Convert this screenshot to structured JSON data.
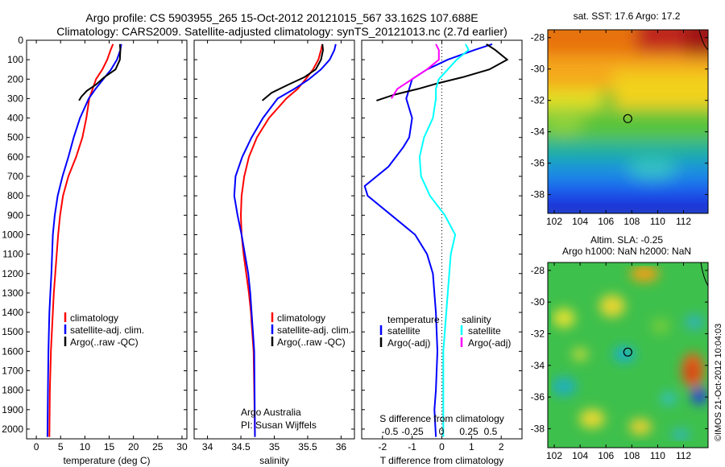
{
  "title": {
    "line1": "Argo profile: CS 5903955_265 15-Oct-2012 20121015_567 33.162S 107.688E",
    "line2": "Climatology: CARS2009. Satellite-adjusted climatology: synTS_20121013.nc (2.7d earlier)"
  },
  "colors": {
    "climatology": "#ff0000",
    "satellite": "#0000ff",
    "argo": "#000000",
    "sat_salinity": "#00ffff",
    "argo_salinity": "#ff00ff"
  },
  "chart_data": [
    {
      "type": "line",
      "xlabel": "temperature (deg C)",
      "ylabel": "",
      "xlim": [
        -2,
        31
      ],
      "ylim": [
        2050,
        0
      ],
      "xticks": [
        0,
        5,
        10,
        15,
        20,
        25,
        30
      ],
      "yticks": [
        0,
        100,
        200,
        300,
        400,
        500,
        600,
        700,
        800,
        900,
        1000,
        1100,
        1200,
        1300,
        1400,
        1500,
        1600,
        1700,
        1800,
        1900,
        2000
      ],
      "legend": [
        "climatology",
        "satellite-adj. clim.",
        "Argo(..raw -QC)"
      ],
      "legend_position": "lower-middle",
      "series": [
        {
          "name": "climatology",
          "color": "#ff0000",
          "x": [
            15.8,
            15.3,
            14.6,
            13.6,
            12.3,
            11.6,
            10.9,
            10.3,
            9.5,
            8.2,
            6.6,
            5.5,
            4.9,
            4.5,
            4.2,
            3.9,
            3.6,
            3.4,
            3.2,
            3.0,
            2.8,
            2.7
          ],
          "y": [
            20,
            50,
            100,
            150,
            200,
            250,
            300,
            400,
            500,
            600,
            700,
            800,
            900,
            1000,
            1100,
            1200,
            1300,
            1400,
            1500,
            1600,
            1800,
            2040
          ]
        },
        {
          "name": "satellite-adj. clim.",
          "color": "#0000ff",
          "x": [
            17.5,
            17.3,
            16.6,
            15.4,
            13.8,
            12.2,
            10.8,
            9.0,
            7.7,
            6.6,
            5.4,
            4.4,
            3.8,
            3.4,
            3.1,
            2.9,
            2.7,
            2.6,
            2.5,
            2.4,
            2.3
          ],
          "y": [
            20,
            50,
            100,
            150,
            200,
            250,
            300,
            400,
            500,
            600,
            700,
            800,
            900,
            1000,
            1200,
            1300,
            1400,
            1500,
            1600,
            1800,
            2040
          ]
        },
        {
          "name": "Argo(..raw -QC)",
          "color": "#000000",
          "x": [
            17.2,
            17.3,
            17.2,
            16.3,
            14.0,
            12.2,
            10.4,
            9.3,
            8.8
          ],
          "y": [
            20,
            50,
            100,
            150,
            190,
            230,
            260,
            290,
            310
          ]
        }
      ]
    },
    {
      "type": "line",
      "xlabel": "salinity",
      "xlim": [
        33.8,
        36.2
      ],
      "ylim": [
        2050,
        0
      ],
      "xticks": [
        34,
        34.5,
        35,
        35.5,
        36
      ],
      "legend": [
        "climatology",
        "satellite-adj. clim.",
        "Argo(..raw -QC)"
      ],
      "annotation": [
        "Argo Australia",
        "PI: Susan Wijffels"
      ],
      "series": [
        {
          "name": "climatology",
          "color": "#ff0000",
          "x": [
            35.72,
            35.7,
            35.66,
            35.58,
            35.47,
            35.35,
            35.18,
            34.92,
            34.74,
            34.62,
            34.55,
            34.51,
            34.5,
            34.51,
            34.54,
            34.58,
            34.62,
            34.65,
            34.67,
            34.69,
            34.7,
            34.71
          ],
          "y": [
            20,
            50,
            100,
            150,
            200,
            250,
            300,
            400,
            500,
            600,
            700,
            800,
            900,
            1000,
            1100,
            1200,
            1300,
            1400,
            1500,
            1600,
            1800,
            2040
          ]
        },
        {
          "name": "satellite-adj. clim.",
          "color": "#0000ff",
          "x": [
            35.92,
            35.9,
            35.83,
            35.7,
            35.52,
            35.3,
            35.05,
            34.83,
            34.66,
            34.52,
            34.42,
            34.4,
            34.45,
            34.51,
            34.56,
            34.61,
            34.64,
            34.66,
            34.68,
            34.7,
            34.71
          ],
          "y": [
            20,
            50,
            100,
            150,
            200,
            250,
            300,
            400,
            500,
            600,
            700,
            800,
            900,
            1000,
            1100,
            1200,
            1300,
            1400,
            1500,
            1600,
            2040
          ]
        },
        {
          "name": "Argo(..raw -QC)",
          "color": "#000000",
          "x": [
            35.72,
            35.73,
            35.7,
            35.62,
            35.45,
            35.2,
            34.96,
            34.82
          ],
          "y": [
            20,
            50,
            100,
            150,
            190,
            230,
            270,
            310
          ]
        }
      ]
    },
    {
      "type": "line",
      "xlabel": "T difference from climatology",
      "xlabel2": "S difference from climatology",
      "xlim": [
        -2.7,
        2.7
      ],
      "ylim": [
        2050,
        0
      ],
      "xticks": [
        -2,
        -1,
        0,
        1,
        2
      ],
      "xticks_top": [
        "-0.5",
        "-0.25",
        "0",
        "0.25",
        "0.5"
      ],
      "legend_headers": [
        "temperature",
        "salinity"
      ],
      "legend": [
        "satellite",
        "Argo(-adj)",
        "satellite",
        "Argo(-adj)"
      ],
      "series": [
        {
          "name": "satellite",
          "quantity": "temperature",
          "color": "#0000ff",
          "x": [
            1.7,
            1.1,
            0.2,
            -0.5,
            -1.0,
            -1.1,
            -1.2,
            -1.0,
            -1.1,
            -1.3,
            -1.8,
            -2.6,
            -2.5,
            -1.7,
            -0.9,
            -0.5,
            -0.3,
            -0.2,
            -0.15,
            -0.2,
            -0.25,
            -0.2
          ],
          "y": [
            20,
            50,
            100,
            150,
            200,
            250,
            300,
            400,
            500,
            550,
            650,
            750,
            800,
            900,
            1000,
            1100,
            1200,
            1400,
            1600,
            1800,
            1900,
            2040
          ]
        },
        {
          "name": "Argo(-adj)",
          "quantity": "temperature",
          "color": "#000000",
          "x": [
            1.5,
            1.8,
            2.2,
            1.6,
            0.7,
            -0.1,
            -0.8,
            -1.6,
            -2.2
          ],
          "y": [
            20,
            50,
            100,
            150,
            190,
            220,
            250,
            280,
            310
          ]
        },
        {
          "name": "satellite",
          "quantity": "salinity",
          "color": "#00ffff",
          "x": [
            0.8,
            0.9,
            0.5,
            0.2,
            -0.1,
            -0.2,
            -0.2,
            -0.3,
            -0.6,
            -0.75,
            -0.7,
            -0.4,
            0.1,
            0.45,
            0.3,
            0.25,
            0.15,
            0.05,
            0.05,
            0.05
          ],
          "y": [
            20,
            50,
            100,
            150,
            200,
            250,
            300,
            400,
            500,
            600,
            700,
            800,
            900,
            1000,
            1100,
            1200,
            1400,
            1600,
            1800,
            2040
          ]
        },
        {
          "name": "Argo(-adj)",
          "quantity": "salinity",
          "color": "#ff00ff",
          "x": [
            -0.2,
            -0.1,
            -0.1,
            -0.5,
            -1.0,
            -1.5,
            -1.7
          ],
          "y": [
            20,
            50,
            100,
            150,
            200,
            250,
            300
          ]
        }
      ]
    }
  ],
  "maps": [
    {
      "title": "sat. SST: 17.6 Argo: 17.2",
      "xticks": [
        "102",
        "104",
        "106",
        "108",
        "110",
        "112"
      ],
      "yticks": [
        "-28",
        "-30",
        "-32",
        "-34",
        "-36",
        "-38"
      ],
      "xlim": [
        101.5,
        113.9
      ],
      "ylim": [
        -39.2,
        -27.5
      ],
      "marker": {
        "lon": 107.688,
        "lat": -33.162
      }
    },
    {
      "title_line1": "Altim. SLA: -0.25",
      "title_line2": "Argo h1000: NaN h2000: NaN",
      "xticks": [
        "102",
        "104",
        "106",
        "108",
        "110",
        "112"
      ],
      "yticks": [
        "-28",
        "-30",
        "-32",
        "-34",
        "-36",
        "-38"
      ],
      "xlim": [
        101.5,
        113.9
      ],
      "ylim": [
        -39.2,
        -27.5
      ],
      "marker": {
        "lon": 107.688,
        "lat": -33.162
      }
    }
  ],
  "watermark": "©IMOS 21-Oct-2012 10:04:03"
}
